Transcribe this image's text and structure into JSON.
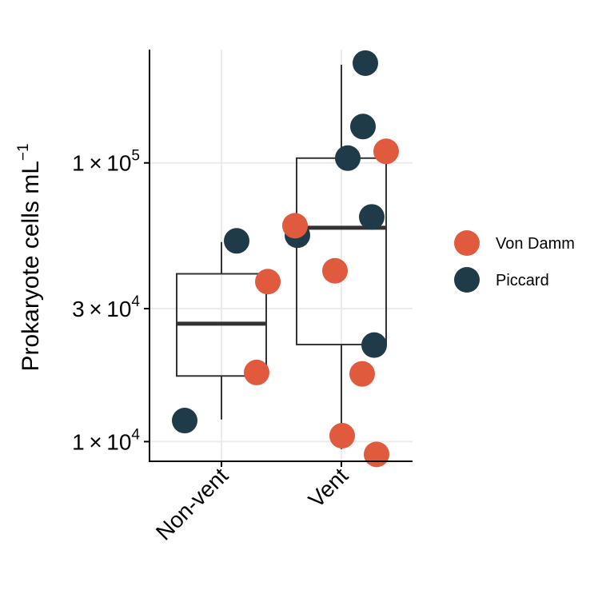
{
  "chart_data": {
    "type": "box",
    "ylabel": "Prokaryote cells  mL",
    "ylabel_superscript": "−1",
    "yscale": "log",
    "ylim": [
      8500,
      255000
    ],
    "grid": true,
    "legend_position": "right",
    "colors": {
      "Von Damm": "#E05A3E",
      "Piccard": "#1F3A48"
    },
    "categories": [
      "Non-vent",
      "Vent"
    ],
    "y_ticks": [
      {
        "value": 10000,
        "mantissa": "1",
        "exp": "4"
      },
      {
        "value": 30000,
        "mantissa": "3",
        "exp": "4"
      },
      {
        "value": 100000,
        "mantissa": "1",
        "exp": "5"
      }
    ],
    "boxes": [
      {
        "category": "Non-vent",
        "whisker_low": 12000,
        "q1": 17200,
        "median": 26500,
        "q3": 40000,
        "whisker_high": 52000
      },
      {
        "category": "Vent",
        "whisker_low": 9400,
        "q1": 22300,
        "median": 58500,
        "q3": 104000,
        "whisker_high": 225000
      }
    ],
    "series": [
      {
        "name": "Von Damm",
        "points": [
          {
            "x": "Non-vent",
            "y": 37500
          },
          {
            "x": "Non-vent",
            "y": 17700
          },
          {
            "x": "Vent",
            "y": 110000
          },
          {
            "x": "Vent",
            "y": 59500
          },
          {
            "x": "Vent",
            "y": 41000
          },
          {
            "x": "Vent",
            "y": 17500
          },
          {
            "x": "Vent",
            "y": 10500
          },
          {
            "x": "Vent",
            "y": 9000
          }
        ]
      },
      {
        "name": "Piccard",
        "points": [
          {
            "x": "Non-vent",
            "y": 52500
          },
          {
            "x": "Non-vent",
            "y": 11900
          },
          {
            "x": "Vent",
            "y": 228000
          },
          {
            "x": "Vent",
            "y": 135000
          },
          {
            "x": "Vent",
            "y": 104000
          },
          {
            "x": "Vent",
            "y": 64000
          },
          {
            "x": "Vent",
            "y": 55000
          },
          {
            "x": "Vent",
            "y": 22200
          }
        ]
      }
    ]
  }
}
